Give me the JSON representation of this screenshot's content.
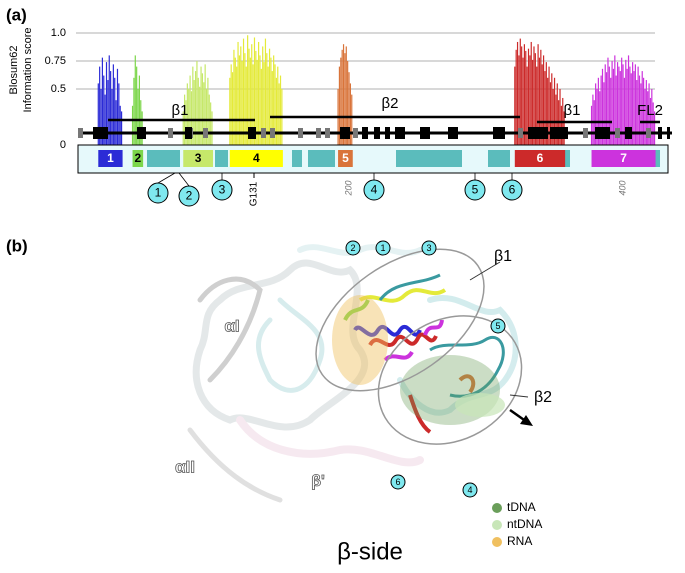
{
  "panel_labels": [
    "(a)",
    "(b)"
  ],
  "chart_data": {
    "type": "bar",
    "ylabel": [
      "Blosum62",
      "Information score"
    ],
    "xlim": [
      0,
      435
    ],
    "xticks": [
      200,
      400
    ],
    "ylim": [
      0,
      1
    ],
    "yticks": [
      0,
      0.5,
      0.75,
      {
        "value": 1,
        "label": "1.0"
      }
    ],
    "grid": true,
    "annotation": "G131",
    "domain_labels": [
      "β1",
      "β2",
      "β1",
      "FL2"
    ],
    "markers": [
      "1",
      "2",
      "3",
      "4",
      "5",
      "6"
    ],
    "series": [
      {
        "name": "1",
        "color": "#2b2bd6",
        "x": [
          17,
          18,
          19,
          20,
          21,
          22,
          23,
          24,
          25,
          26,
          27,
          28,
          29,
          30,
          31,
          32,
          33,
          34
        ],
        "values": [
          0.55,
          0.7,
          0.5,
          0.78,
          0.62,
          0.45,
          0.74,
          0.58,
          0.8,
          0.66,
          0.5,
          0.72,
          0.6,
          0.4,
          0.68,
          0.55,
          0.35,
          0.3
        ]
      },
      {
        "name": "2",
        "color": "#7cd64a",
        "x": [
          42,
          43,
          44,
          45,
          46,
          47,
          48,
          49
        ],
        "values": [
          0.35,
          0.6,
          0.8,
          0.7,
          0.5,
          0.62,
          0.4,
          0.3
        ]
      },
      {
        "name": "3",
        "color": "#c6e86a",
        "x": [
          79,
          80,
          81,
          82,
          83,
          84,
          85,
          86,
          87,
          88,
          89,
          90,
          91,
          92,
          93,
          94,
          95,
          96,
          97,
          98,
          99,
          100
        ],
        "values": [
          0.3,
          0.45,
          0.4,
          0.55,
          0.5,
          0.62,
          0.48,
          0.7,
          0.58,
          0.66,
          0.75,
          0.6,
          0.52,
          0.7,
          0.64,
          0.56,
          0.72,
          0.5,
          0.6,
          0.45,
          0.38,
          0.3
        ]
      },
      {
        "name": "4",
        "color": "#e4ea3a",
        "x": [
          113,
          114,
          115,
          116,
          117,
          118,
          119,
          120,
          121,
          122,
          123,
          124,
          125,
          126,
          127,
          128,
          129,
          130,
          131,
          132,
          133,
          134,
          135,
          136,
          137,
          138,
          139,
          140,
          141,
          142,
          143,
          144,
          145,
          146,
          147,
          148,
          149,
          150,
          151
        ],
        "values": [
          0.6,
          0.72,
          0.65,
          0.85,
          0.78,
          0.7,
          0.92,
          0.8,
          0.88,
          0.75,
          0.95,
          0.82,
          0.7,
          0.98,
          0.86,
          0.78,
          0.9,
          0.72,
          0.96,
          0.84,
          0.76,
          0.92,
          0.8,
          0.68,
          0.88,
          0.74,
          0.95,
          0.82,
          0.7,
          0.86,
          0.78,
          0.66,
          0.8,
          0.72,
          0.6,
          0.7,
          0.55,
          0.62,
          0.5
        ]
      },
      {
        "name": "5",
        "color": "#d9743a",
        "x": [
          192,
          193,
          194,
          195,
          196,
          197,
          198,
          199,
          200,
          201,
          202
        ],
        "values": [
          0.5,
          0.7,
          0.78,
          0.85,
          0.9,
          0.82,
          0.88,
          0.75,
          0.65,
          0.55,
          0.45
        ]
      },
      {
        "name": "6",
        "color": "#cc2a2a",
        "x": [
          321,
          322,
          323,
          324,
          325,
          326,
          327,
          328,
          329,
          330,
          331,
          332,
          333,
          334,
          335,
          336,
          337,
          338,
          339,
          340,
          341,
          342,
          343,
          344,
          345,
          346,
          347,
          348,
          349,
          350,
          351,
          352,
          353,
          354,
          355,
          356,
          357
        ],
        "values": [
          0.7,
          0.85,
          0.92,
          0.8,
          0.95,
          0.88,
          0.78,
          0.9,
          0.84,
          0.7,
          0.86,
          0.8,
          0.92,
          0.76,
          0.88,
          0.82,
          0.7,
          0.9,
          0.78,
          0.85,
          0.72,
          0.8,
          0.66,
          0.74,
          0.6,
          0.7,
          0.56,
          0.64,
          0.5,
          0.6,
          0.45,
          0.55,
          0.4,
          0.5,
          0.35,
          0.42,
          0.3
        ]
      },
      {
        "name": "7",
        "color": "#cc33dd",
        "x": [
          377,
          378,
          379,
          380,
          381,
          382,
          383,
          384,
          385,
          386,
          387,
          388,
          389,
          390,
          391,
          392,
          393,
          394,
          395,
          396,
          397,
          398,
          399,
          400,
          401,
          402,
          403,
          404,
          405,
          406,
          407,
          408,
          409,
          410,
          411,
          412,
          413,
          414,
          415,
          416,
          417,
          418,
          419,
          420,
          421,
          422,
          423
        ],
        "values": [
          0.35,
          0.45,
          0.4,
          0.55,
          0.5,
          0.6,
          0.48,
          0.62,
          0.68,
          0.56,
          0.72,
          0.65,
          0.78,
          0.7,
          0.6,
          0.75,
          0.68,
          0.8,
          0.62,
          0.74,
          0.7,
          0.66,
          0.78,
          0.72,
          0.6,
          0.76,
          0.68,
          0.8,
          0.7,
          0.64,
          0.74,
          0.66,
          0.72,
          0.58,
          0.7,
          0.62,
          0.55,
          0.66,
          0.6,
          0.5,
          0.58,
          0.48,
          0.55,
          0.42,
          0.5,
          0.38,
          0.3
        ]
      }
    ]
  },
  "structure": {
    "labels": [
      "αI",
      "αII",
      "β'",
      "β1",
      "β2"
    ],
    "markers": [
      "2",
      "1",
      "3",
      "5",
      "6",
      "4"
    ],
    "title": "β-side",
    "legend": [
      {
        "name": "tDNA",
        "color": "#6a9e5a"
      },
      {
        "name": "ntDNA",
        "color": "#c8e6b8"
      },
      {
        "name": "RNA",
        "color": "#f0c060"
      }
    ]
  }
}
